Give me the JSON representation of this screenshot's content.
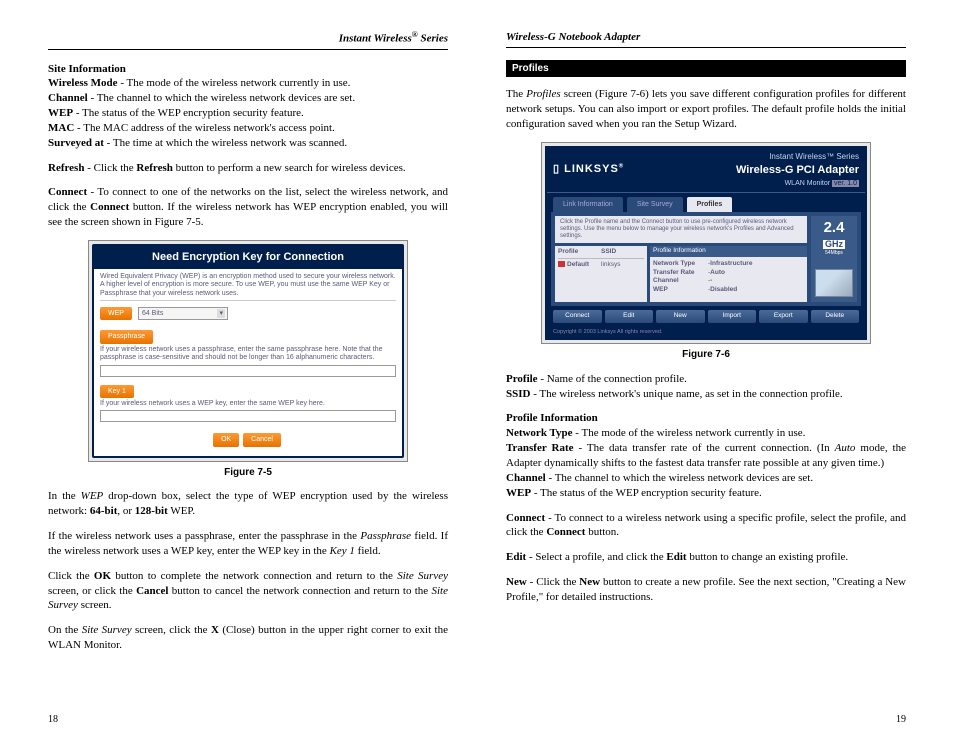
{
  "left": {
    "header": "Instant Wireless",
    "header_reg": "®",
    "header_tail": " Series",
    "site_info_title": "Site Information",
    "lines": [
      {
        "b": "Wireless Mode",
        "t": " - The mode of the wireless network currently in use."
      },
      {
        "b": "Channel",
        "t": " - The channel to which the wireless network devices are set."
      },
      {
        "b": "WEP",
        "t": " - The status of the WEP encryption security feature."
      },
      {
        "b": "MAC",
        "t": " - The MAC address of the wireless network's access point."
      },
      {
        "b": "Surveyed at",
        "t": " - The time at which the wireless network was scanned."
      }
    ],
    "refresh_b": "Refresh",
    "refresh_t1": " - Click the ",
    "refresh_t2": " button to perform a new search for wireless devices.",
    "connect_b": "Connect",
    "connect_t1": " - To connect to one of the networks on the list, select the wireless network, and click the ",
    "connect_t2": " button. If the wireless network has WEP encryption enabled, you will see the screen shown in Figure 7-5.",
    "fig75": {
      "title": "Need Encryption Key for Connection",
      "p1": "Wired Equivalent Privacy (WEP) is an encryption method used to secure your wireless network. A higher level of encryption is more secure. To use WEP, you must use the same WEP Key or Passphrase that your wireless network uses.",
      "wep_label": "WEP",
      "wep_value": "64 Bits",
      "pass_label": "Passphrase",
      "p2a": "If your wireless network uses a passphrase, enter the same passphrase here. Note that the passphrase is ",
      "p2b": "case-sensitive",
      "p2c": " and should not be longer than 16 alphanumeric characters.",
      "key_label": "Key 1",
      "p3": "If your wireless network uses a WEP key, enter the same WEP key here.",
      "ok": "OK",
      "cancel": "Cancel",
      "caption": "Figure 7-5"
    },
    "p_wep1": "In the ",
    "p_wep_i": "WEP",
    "p_wep2": " drop-down box, select the type of WEP encryption used by the wireless network: ",
    "p_wep_b1": "64-bit",
    "p_wep3": ", or ",
    "p_wep_b2": "128-bit",
    "p_wep4": " WEP.",
    "p_pass": "If the wireless network uses a passphrase, enter the passphrase in the ",
    "p_pass_i": "Passphrase",
    "p_pass2": " field. If the wireless network uses a WEP key, enter the WEP key in the ",
    "p_pass_i2": "Key 1",
    "p_pass3": " field.",
    "p_ok1": "Click the ",
    "p_ok_b": "OK",
    "p_ok2": " button to complete the network connection and return to the ",
    "p_ok_i1": "Site Survey",
    "p_ok3": " screen, or click the ",
    "p_ok_b2": "Cancel",
    "p_ok4": " button to cancel the network connection and return to the ",
    "p_ok_i2": "Site Survey",
    "p_ok5": " screen.",
    "p_x1": "On the ",
    "p_x_i": "Site Survey",
    "p_x2": " screen, click the ",
    "p_x_b": "X",
    "p_x3": " (Close) button in the upper right corner to exit the WLAN Monitor.",
    "pagenum": "18"
  },
  "right": {
    "header": "Wireless-G Notebook Adapter",
    "section": "Profiles",
    "p1a": "The ",
    "p1i": "Profiles",
    "p1b": " screen (Figure 7-6) lets you save different configuration profiles for different network setups. You can also import or export profiles. The default profile holds the initial configuration saved when you ran the Setup Wizard.",
    "fig76": {
      "logo": "LINKSYS",
      "series": "Instant Wireless™ Series",
      "product": "Wireless-G PCI Adapter",
      "monitor": "WLAN Monitor",
      "ver": "ver. 1.0",
      "tabs": [
        "Link Information",
        "Site Survey",
        "Profiles"
      ],
      "instr": "Click the Profile name and the Connect button to use pre-configured wireless network settings. Use the menu below to manage your wireless network's Profiles and Advanced settings.",
      "list_hdr": [
        "Profile",
        "SSID"
      ],
      "list_row": [
        "Default",
        "linksys"
      ],
      "info_hdr": "Profile Information",
      "info": [
        {
          "k": "Network Type",
          "v": "Infrastructure"
        },
        {
          "k": "Transfer Rate",
          "v": "Auto"
        },
        {
          "k": "Channel",
          "v": "-"
        },
        {
          "k": "WEP",
          "v": "Disabled"
        }
      ],
      "ghz_n": "2.4",
      "ghz_g": "GHz",
      "ghz_m": "54Mbps",
      "buttons": [
        "Connect",
        "Edit",
        "New",
        "Import",
        "Export",
        "Delete"
      ],
      "foot": "Copyright © 2003 Linksys   All rights reserved.",
      "caption": "Figure 7-6"
    },
    "defs": [
      {
        "b": "Profile",
        "t": " - Name of the connection profile."
      },
      {
        "b": "SSID",
        "t": " - The wireless network's unique name, as set in the connection profile."
      }
    ],
    "pi_title": "Profile Information",
    "pi": [
      {
        "b": "Network Type",
        "t": " - The mode of the wireless network currently in use."
      }
    ],
    "tr_b": "Transfer Rate",
    "tr_1": " - The data transfer rate of the current connection. (In ",
    "tr_i": "Auto",
    "tr_2": " mode, the Adapter dynamically shifts to the fastest data transfer rate possible at any given time.)",
    "pi2": [
      {
        "b": "Channel",
        "t": " - The channel to which the wireless network devices are set."
      },
      {
        "b": "WEP",
        "t": " - The status of the WEP encryption security feature."
      }
    ],
    "conn_b": "Connect",
    "conn_1": " - To connect to a wireless network using a specific profile, select the profile, and click the ",
    "conn_2": " button.",
    "edit_b": "Edit",
    "edit_1": " - Select a profile, and click the ",
    "edit_2": " button to change an existing profile.",
    "new_b": "New",
    "new_1": " - Click the ",
    "new_2": " button to create a new profile. See the next section, \"Creating a New Profile,\" for detailed instructions.",
    "pagenum": "19"
  }
}
